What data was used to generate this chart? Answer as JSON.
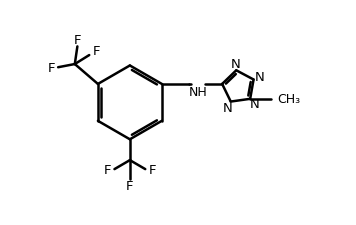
{
  "bg_color": "#ffffff",
  "line_color": "#000000",
  "line_width": 1.8,
  "font_size": 9.5,
  "figsize": [
    3.56,
    2.26
  ],
  "dpi": 100,
  "xlim": [
    0,
    10
  ],
  "ylim": [
    0,
    7
  ]
}
